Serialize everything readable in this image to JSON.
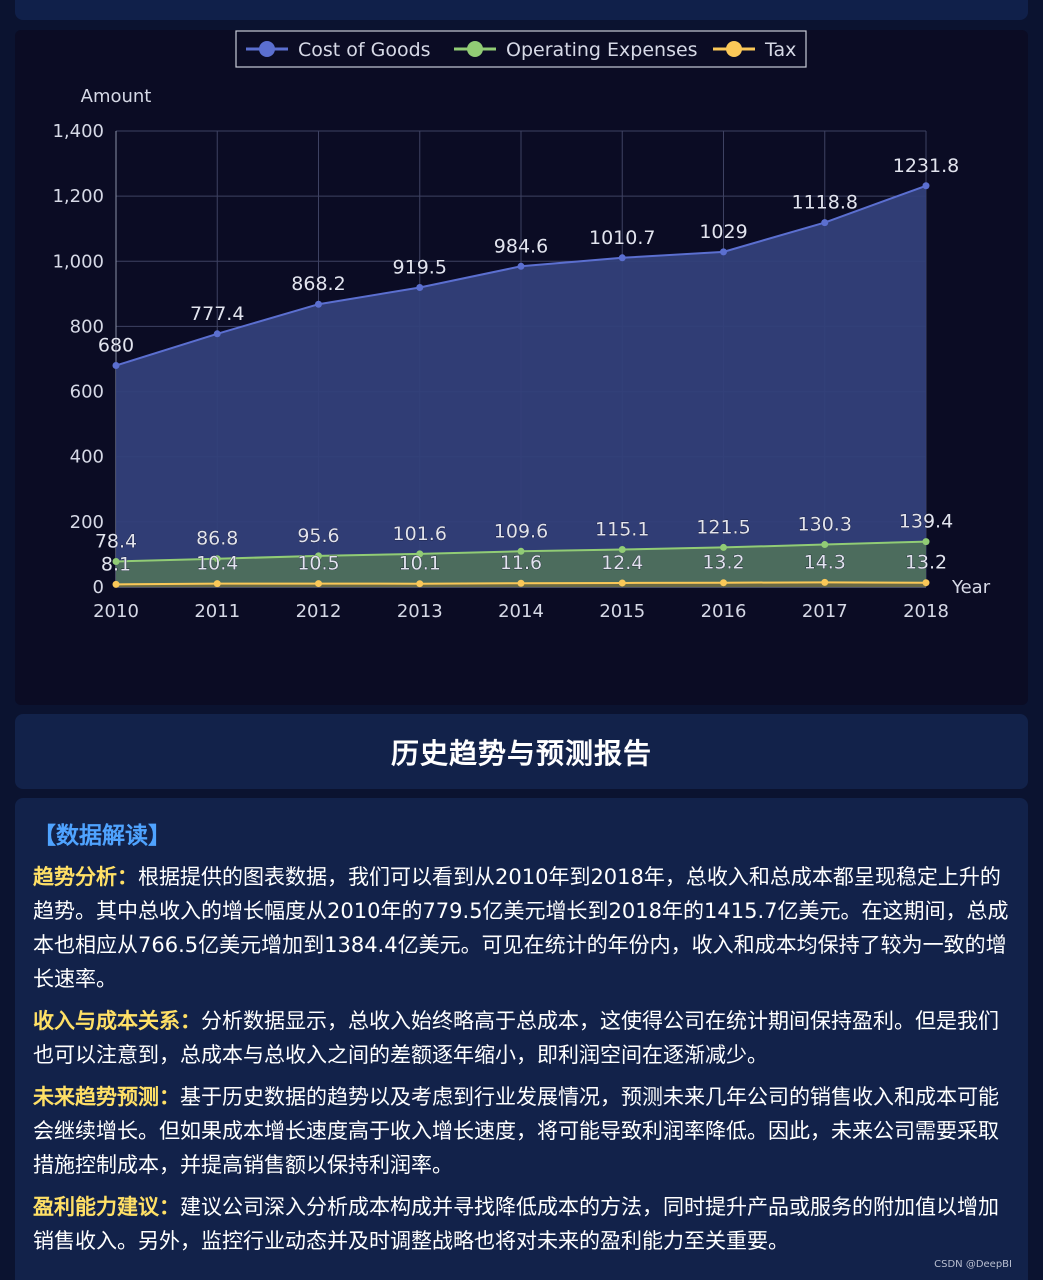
{
  "chart_data": {
    "type": "area",
    "categories": [
      "2010",
      "2011",
      "2012",
      "2013",
      "2014",
      "2015",
      "2016",
      "2017",
      "2018"
    ],
    "series": [
      {
        "name": "Cost of Goods",
        "values": [
          680,
          777.4,
          868.2,
          919.5,
          984.6,
          1010.7,
          1029,
          1118.8,
          1231.8
        ],
        "color": "#5b6fd0",
        "fill": "#33407a"
      },
      {
        "name": "Operating Expenses",
        "values": [
          78.4,
          86.8,
          95.6,
          101.6,
          109.6,
          115.1,
          121.5,
          130.3,
          139.4
        ],
        "color": "#91cc75",
        "fill": "#4e6f5c"
      },
      {
        "name": "Tax",
        "values": [
          8.1,
          10.4,
          10.5,
          10.1,
          11.6,
          12.4,
          13.2,
          14.3,
          13.2
        ],
        "color": "#fac858",
        "fill": "#6b6a45"
      }
    ],
    "xlabel": "Year",
    "ylabel": "Amount",
    "ylim": [
      0,
      1400
    ],
    "yticks": [
      0,
      200,
      400,
      600,
      800,
      1000,
      1200,
      1400
    ],
    "ytick_labels": [
      "0",
      "200",
      "400",
      "600",
      "800",
      "1,000",
      "1,200",
      "1,400"
    ],
    "grid": true,
    "legend_position": "top-center"
  },
  "report": {
    "title": "历史趋势与预测报告",
    "section_heading": "【数据解读】",
    "paragraphs": [
      {
        "label": "趋势分析：",
        "text": "根据提供的图表数据，我们可以看到从2010年到2018年，总收入和总成本都呈现稳定上升的趋势。其中总收入的增长幅度从2010年的779.5亿美元增长到2018年的1415.7亿美元。在这期间，总成本也相应从766.5亿美元增加到1384.4亿美元。可见在统计的年份内，收入和成本均保持了较为一致的增长速率。"
      },
      {
        "label": "收入与成本关系：",
        "text": "分析数据显示，总收入始终略高于总成本，这使得公司在统计期间保持盈利。但是我们也可以注意到，总成本与总收入之间的差额逐年缩小，即利润空间在逐渐减少。"
      },
      {
        "label": "未来趋势预测：",
        "text": "基于历史数据的趋势以及考虑到行业发展情况，预测未来几年公司的销售收入和成本可能会继续增长。但如果成本增长速度高于收入增长速度，将可能导致利润率降低。因此，未来公司需要采取措施控制成本，并提高销售额以保持利润率。"
      },
      {
        "label": "盈利能力建议：",
        "text": "建议公司深入分析成本构成并寻找降低成本的方法，同时提升产品或服务的附加值以增加销售收入。另外，监控行业动态并及时调整战略也将对未来的盈利能力至关重要。"
      }
    ]
  },
  "watermark": "CSDN @DeepBI"
}
